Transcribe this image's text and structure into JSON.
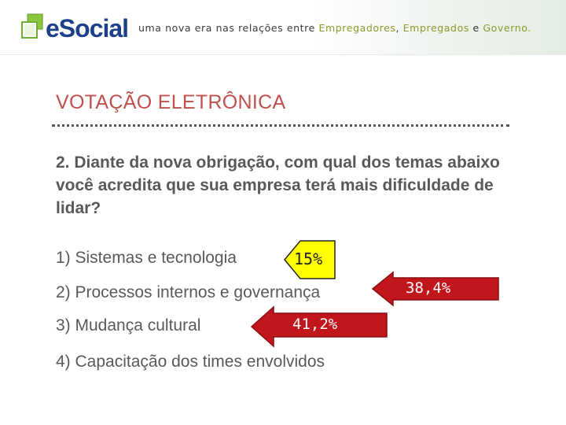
{
  "header": {
    "logo_text": "eSocial",
    "tagline_prefix": "uma nova era nas relações entre ",
    "tagline_emp1": "Empregadores",
    "tagline_sep1": ", ",
    "tagline_emp2": "Empregados",
    "tagline_sep2": " e ",
    "tagline_gov": "Governo."
  },
  "slide": {
    "title": "VOTAÇÃO ELETRÔNICA",
    "question": "2. Diante da nova obrigação, com qual dos temas abaixo você acredita que sua empresa terá mais dificuldade de lidar?",
    "options": [
      {
        "label": "1) Sistemas e tecnologia",
        "result": "15%"
      },
      {
        "label": "2) Processos internos e governança",
        "result": "38,4%"
      },
      {
        "label": "3) Mudança cultural",
        "result": "41,2%"
      },
      {
        "label": "4) Capacitação dos times envolvidos",
        "result": ""
      }
    ]
  },
  "colors": {
    "title": "#c0504d",
    "arrow_red": "#c0161c",
    "callout_yellow": "#ffff00",
    "logo_blue": "#1e3f8a",
    "logo_green": "#8cc63f"
  }
}
